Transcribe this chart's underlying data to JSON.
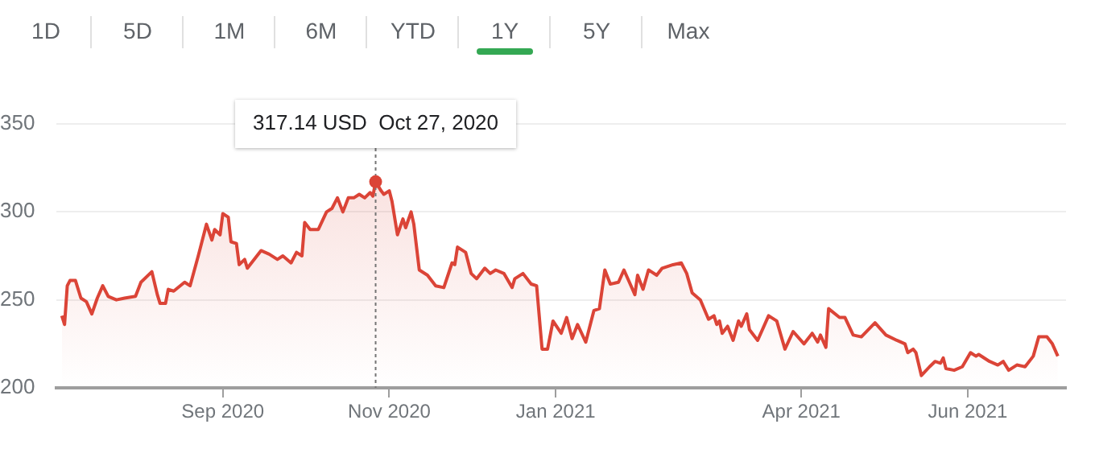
{
  "chart_data": {
    "type": "area",
    "color": "#db4437",
    "x": [
      "2020-07-04",
      "2020-07-05",
      "2020-07-06",
      "2020-07-07",
      "2020-07-09",
      "2020-07-11",
      "2020-07-13",
      "2020-07-15",
      "2020-07-17",
      "2020-07-19",
      "2020-07-21",
      "2020-07-24",
      "2020-07-27",
      "2020-07-31",
      "2020-08-02",
      "2020-08-06",
      "2020-08-08",
      "2020-08-09",
      "2020-08-11",
      "2020-08-12",
      "2020-08-14",
      "2020-08-18",
      "2020-08-20",
      "2020-08-23",
      "2020-08-26",
      "2020-08-28",
      "2020-08-29",
      "2020-08-31",
      "2020-09-01",
      "2020-09-03",
      "2020-09-04",
      "2020-09-06",
      "2020-09-07",
      "2020-09-09",
      "2020-09-10",
      "2020-09-15",
      "2020-09-18",
      "2020-09-21",
      "2020-09-23",
      "2020-09-26",
      "2020-09-28",
      "2020-09-30",
      "2020-10-01",
      "2020-10-03",
      "2020-10-06",
      "2020-10-09",
      "2020-10-11",
      "2020-10-13",
      "2020-10-15",
      "2020-10-17",
      "2020-10-19",
      "2020-10-21",
      "2020-10-23",
      "2020-10-25",
      "2020-10-26",
      "2020-10-27",
      "2020-10-29",
      "2020-10-30",
      "2020-11-01",
      "2020-11-02",
      "2020-11-04",
      "2020-11-06",
      "2020-11-07",
      "2020-11-09",
      "2020-11-10",
      "2020-11-12",
      "2020-11-15",
      "2020-11-18",
      "2020-11-21",
      "2020-11-24",
      "2020-11-25",
      "2020-11-26",
      "2020-11-29",
      "2020-12-01",
      "2020-12-03",
      "2020-12-06",
      "2020-12-08",
      "2020-12-10",
      "2020-12-13",
      "2020-12-16",
      "2020-12-17",
      "2020-12-20",
      "2020-12-23",
      "2020-12-25",
      "2020-12-27",
      "2020-12-29",
      "2020-12-31",
      "2021-01-03",
      "2021-01-05",
      "2021-01-07",
      "2021-01-09",
      "2021-01-12",
      "2021-01-15",
      "2021-01-17",
      "2021-01-19",
      "2021-01-21",
      "2021-01-24",
      "2021-01-26",
      "2021-01-28",
      "2021-01-30",
      "2021-01-31",
      "2021-02-02",
      "2021-02-04",
      "2021-02-05",
      "2021-02-07",
      "2021-02-09",
      "2021-02-13",
      "2021-02-16",
      "2021-02-18",
      "2021-02-20",
      "2021-02-23",
      "2021-02-26",
      "2021-02-28",
      "2021-03-01",
      "2021-03-02",
      "2021-03-03",
      "2021-03-05",
      "2021-03-07",
      "2021-03-09",
      "2021-03-10",
      "2021-03-12",
      "2021-03-13",
      "2021-03-16",
      "2021-03-20",
      "2021-03-23",
      "2021-03-26",
      "2021-03-29",
      "2021-04-02",
      "2021-04-05",
      "2021-04-07",
      "2021-04-08",
      "2021-04-10",
      "2021-04-11",
      "2021-04-15",
      "2021-04-17",
      "2021-04-20",
      "2021-04-23",
      "2021-04-28",
      "2021-05-02",
      "2021-05-06",
      "2021-05-09",
      "2021-05-10",
      "2021-05-12",
      "2021-05-13",
      "2021-05-15",
      "2021-05-18",
      "2021-05-20",
      "2021-05-22",
      "2021-05-23",
      "2021-05-24",
      "2021-05-27",
      "2021-05-30",
      "2021-06-02",
      "2021-06-04",
      "2021-06-05",
      "2021-06-09",
      "2021-06-12",
      "2021-06-14",
      "2021-06-16",
      "2021-06-19",
      "2021-06-22",
      "2021-06-25",
      "2021-06-27",
      "2021-06-30",
      "2021-07-02",
      "2021-07-04"
    ],
    "values": [
      241,
      236,
      258,
      261,
      261,
      251,
      249,
      242,
      251,
      258,
      252,
      250,
      251,
      252,
      260,
      266,
      253,
      248,
      248,
      256,
      255,
      260,
      258,
      275,
      293,
      284,
      290,
      287,
      299,
      297,
      283,
      282,
      270,
      273,
      268,
      278,
      276,
      273,
      275,
      271,
      277,
      275,
      294,
      290,
      290,
      300,
      302,
      308,
      300,
      308,
      308,
      310,
      308,
      311,
      309,
      317.14,
      312,
      310,
      312,
      306,
      287,
      296,
      291,
      300,
      293,
      267,
      264,
      258,
      257,
      271,
      270,
      280,
      277,
      265,
      262,
      268,
      265,
      267,
      265,
      257,
      262,
      265,
      259,
      258,
      222,
      222,
      238,
      231,
      240,
      228,
      236,
      226,
      244,
      245,
      267,
      259,
      260,
      267,
      260,
      253,
      264,
      256,
      267,
      266,
      264,
      268,
      270,
      271,
      265,
      254,
      250,
      239,
      241,
      236,
      238,
      231,
      235,
      227,
      238,
      235,
      242,
      233,
      227,
      241,
      238,
      222,
      232,
      225,
      231,
      226,
      230,
      223,
      245,
      240,
      240,
      230,
      229,
      237,
      230,
      227,
      225,
      220,
      222,
      220,
      207,
      212,
      215,
      214,
      217,
      211,
      210,
      212,
      220,
      218,
      219,
      215,
      213,
      215,
      210,
      213,
      212,
      218,
      229,
      229,
      225,
      218
    ],
    "xlim": [
      "2020-07-02",
      "2021-07-07"
    ],
    "xticks": [
      {
        "value": "2020-09-01",
        "label": "Sep 2020"
      },
      {
        "value": "2020-11-01",
        "label": "Nov 2020"
      },
      {
        "value": "2021-01-01",
        "label": "Jan 2021"
      },
      {
        "value": "2021-04-01",
        "label": "Apr 2021"
      },
      {
        "value": "2021-06-01",
        "label": "Jun 2021"
      }
    ],
    "ref_lines": [
      {
        "axis": "x",
        "value": "2020-10-27",
        "line_style": "dotted",
        "color": "#757575"
      }
    ],
    "ylim": [
      200,
      350
    ],
    "yticks": [
      200,
      250,
      300,
      350
    ],
    "grid": "y",
    "annotations": [
      "1D",
      "5D",
      "1M",
      "6M",
      "YTD",
      "1Y",
      "5Y",
      "Max",
      {
        "text": "317.14 USD  Oct 27, 2020",
        "x": "2020-10-27",
        "y": 317.14
      }
    ]
  }
}
